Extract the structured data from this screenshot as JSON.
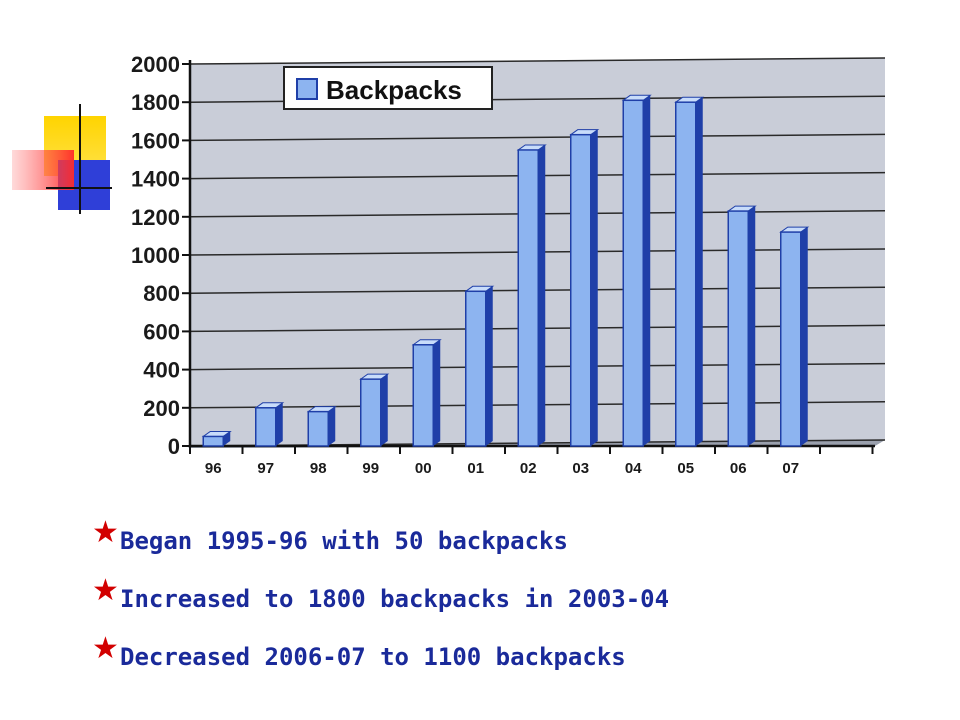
{
  "chart_data": {
    "type": "bar",
    "categories": [
      "96",
      "97",
      "98",
      "99",
      "00",
      "01",
      "02",
      "03",
      "04",
      "05",
      "06",
      "07"
    ],
    "series": [
      {
        "name": "Backpacks",
        "values": [
          50,
          200,
          180,
          350,
          530,
          810,
          1550,
          1630,
          1810,
          1800,
          1230,
          1120
        ]
      }
    ],
    "yticks": [
      "0",
      "200",
      "400",
      "600",
      "800",
      "1000",
      "1200",
      "1400",
      "1600",
      "1800",
      "2000"
    ],
    "ylim": [
      0,
      2000
    ],
    "grid": true,
    "legend": "top-left",
    "colors": {
      "bar_front": "#8db4f0",
      "bar_side": "#1f3fa8",
      "bar_top": "#c8dcfa",
      "plot_bg": "#c9cdd8",
      "grid": "#2a2a2a",
      "star": "#d20000",
      "bullet_text": "#1a2a9a"
    }
  },
  "bullets": [
    "Began 1995-96 with 50 backpacks",
    "Increased to 1800 backpacks in 2003-04",
    "Decreased 2006-07 to 1100 backpacks"
  ],
  "bullet_icon": "star-icon",
  "decoration_icon": "color-squares-icon"
}
